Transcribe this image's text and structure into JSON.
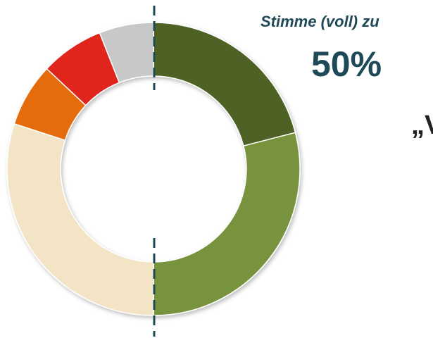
{
  "chart_data": {
    "type": "pie",
    "donut": true,
    "values": [
      21,
      29,
      30,
      7,
      7,
      6
    ],
    "colors": [
      "#4f6228",
      "#77933c",
      "#f2e4c4",
      "#e46c0a",
      "#e0251a",
      "#c8c8c8"
    ],
    "annotations": [
      "Stimme (voll) zu",
      "50%",
      "„V"
    ]
  }
}
